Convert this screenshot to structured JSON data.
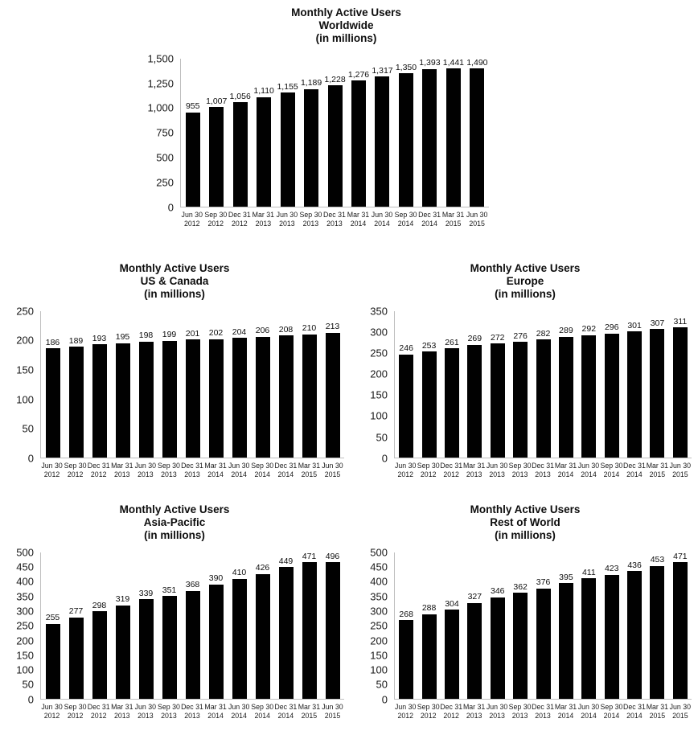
{
  "colors": {
    "bar": "#010101",
    "axis": "#bfbfbf",
    "text": "#0d0d0d"
  },
  "chart_data": [
    {
      "type": "bar",
      "title": "Monthly Active Users Worldwide (in millions)",
      "title_lines": [
        "Monthly Active Users",
        "Worldwide",
        "(in millions)"
      ],
      "categories": [
        "Jun 30 2012",
        "Sep 30 2012",
        "Dec 31 2012",
        "Mar 31 2013",
        "Jun 30 2013",
        "Sep 30 2013",
        "Dec 31 2013",
        "Mar 31 2014",
        "Jun 30 2014",
        "Sep 30 2014",
        "Dec 31 2014",
        "Mar 31 2015",
        "Jun 30 2015"
      ],
      "values": [
        955,
        1007,
        1056,
        1110,
        1155,
        1189,
        1228,
        1276,
        1317,
        1350,
        1393,
        1441,
        1490
      ],
      "xlabel": "",
      "ylabel": "",
      "ylim": [
        0,
        1500
      ],
      "ytick_step": 250,
      "grid": "off",
      "legend": "none"
    },
    {
      "type": "bar",
      "title": "Monthly Active Users US & Canada (in millions)",
      "title_lines": [
        "Monthly Active Users",
        "US & Canada",
        "(in millions)"
      ],
      "categories": [
        "Jun 30 2012",
        "Sep 30 2012",
        "Dec 31 2012",
        "Mar 31 2013",
        "Jun 30 2013",
        "Sep 30 2013",
        "Dec 31 2013",
        "Mar 31 2014",
        "Jun 30 2014",
        "Sep 30 2014",
        "Dec 31 2014",
        "Mar 31 2015",
        "Jun 30 2015"
      ],
      "values": [
        186,
        189,
        193,
        195,
        198,
        199,
        201,
        202,
        204,
        206,
        208,
        210,
        213
      ],
      "xlabel": "",
      "ylabel": "",
      "ylim": [
        0,
        250
      ],
      "ytick_step": 50,
      "grid": "off",
      "legend": "none"
    },
    {
      "type": "bar",
      "title": "Monthly Active Users Europe (in millions)",
      "title_lines": [
        "Monthly Active Users",
        "Europe",
        "(in millions)"
      ],
      "categories": [
        "Jun 30 2012",
        "Sep 30 2012",
        "Dec 31 2012",
        "Mar 31 2013",
        "Jun 30 2013",
        "Sep 30 2013",
        "Dec 31 2013",
        "Mar 31 2014",
        "Jun 30 2014",
        "Sep 30 2014",
        "Dec 31 2014",
        "Mar 31 2015",
        "Jun 30 2015"
      ],
      "values": [
        246,
        253,
        261,
        269,
        272,
        276,
        282,
        289,
        292,
        296,
        301,
        307,
        311
      ],
      "xlabel": "",
      "ylabel": "",
      "ylim": [
        0,
        350
      ],
      "ytick_step": 50,
      "grid": "off",
      "legend": "none"
    },
    {
      "type": "bar",
      "title": "Monthly Active Users Asia-Pacific (in millions)",
      "title_lines": [
        "Monthly Active Users",
        "Asia-Pacific",
        "(in millions)"
      ],
      "categories": [
        "Jun 30 2012",
        "Sep 30 2012",
        "Dec 31 2012",
        "Mar 31 2013",
        "Jun 30 2013",
        "Sep 30 2013",
        "Dec 31 2013",
        "Mar 31 2014",
        "Jun 30 2014",
        "Sep 30 2014",
        "Dec 31 2014",
        "Mar 31 2015",
        "Jun 30 2015"
      ],
      "values": [
        255,
        277,
        298,
        319,
        339,
        351,
        368,
        390,
        410,
        426,
        449,
        471,
        496
      ],
      "xlabel": "",
      "ylabel": "",
      "ylim": [
        0,
        500
      ],
      "ytick_step": 50,
      "grid": "off",
      "legend": "none"
    },
    {
      "type": "bar",
      "title": "Monthly Active Users Rest of World (in millions)",
      "title_lines": [
        "Monthly Active Users",
        "Rest of World",
        "(in millions)"
      ],
      "categories": [
        "Jun 30 2012",
        "Sep 30 2012",
        "Dec 31 2012",
        "Mar 31 2013",
        "Jun 30 2013",
        "Sep 30 2013",
        "Dec 31 2013",
        "Mar 31 2014",
        "Jun 30 2014",
        "Sep 30 2014",
        "Dec 31 2014",
        "Mar 31 2015",
        "Jun 30 2015"
      ],
      "values": [
        268,
        288,
        304,
        327,
        346,
        362,
        376,
        395,
        411,
        423,
        436,
        453,
        471
      ],
      "xlabel": "",
      "ylabel": "",
      "ylim": [
        0,
        500
      ],
      "ytick_step": 50,
      "grid": "off",
      "legend": "none"
    }
  ]
}
